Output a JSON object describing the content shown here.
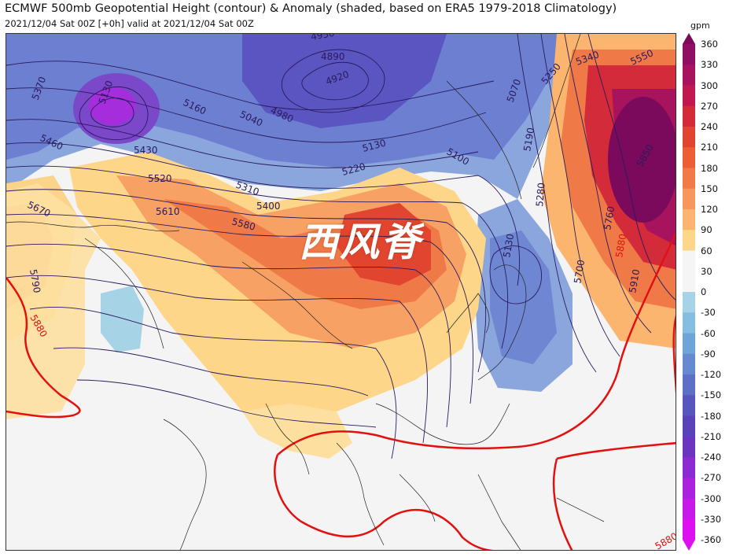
{
  "title": "ECMWF 500mb Geopotential Height (contour) & Anomaly (shaded, based on ERA5 1979-2018 Climatology)",
  "subtitle": "2021/12/04 Sat 00Z [+0h] valid at 2021/12/04 Sat 00Z",
  "overlay_label": "西风脊",
  "colorbar": {
    "unit": "gpm",
    "ticks": [
      "360",
      "330",
      "300",
      "270",
      "240",
      "210",
      "180",
      "150",
      "120",
      "90",
      "60",
      "30",
      "0",
      "-30",
      "-60",
      "-90",
      "-120",
      "-150",
      "-180",
      "-210",
      "-240",
      "-270",
      "-300",
      "-330",
      "-360"
    ],
    "colors": [
      "#7b0a5c",
      "#8f0f63",
      "#a8135e",
      "#c0184f",
      "#d42b3a",
      "#e2452f",
      "#ec5f34",
      "#f27b45",
      "#f79759",
      "#fbb56f",
      "#fdd68a",
      "#f5f5f5",
      "#f5f5f5",
      "#a6d3e6",
      "#86bde0",
      "#6fa4d7",
      "#6789cf",
      "#5e70c6",
      "#5656bc",
      "#5a43b8",
      "#6b35c0",
      "#8b2bd1",
      "#a923de",
      "#c51ae8",
      "#dd10f0"
    ]
  },
  "contour_labels": [
    "4950",
    "4890",
    "4920",
    "4980",
    "5040",
    "5070",
    "5100",
    "5130",
    "5160",
    "5190",
    "5220",
    "5250",
    "5280",
    "5310",
    "5340",
    "5370",
    "5400",
    "5430",
    "5460",
    "5520",
    "5550",
    "5580",
    "5610",
    "5670",
    "5700",
    "5760",
    "5790",
    "5850",
    "5880",
    "5910"
  ],
  "contour_5880_label": "5880"
}
